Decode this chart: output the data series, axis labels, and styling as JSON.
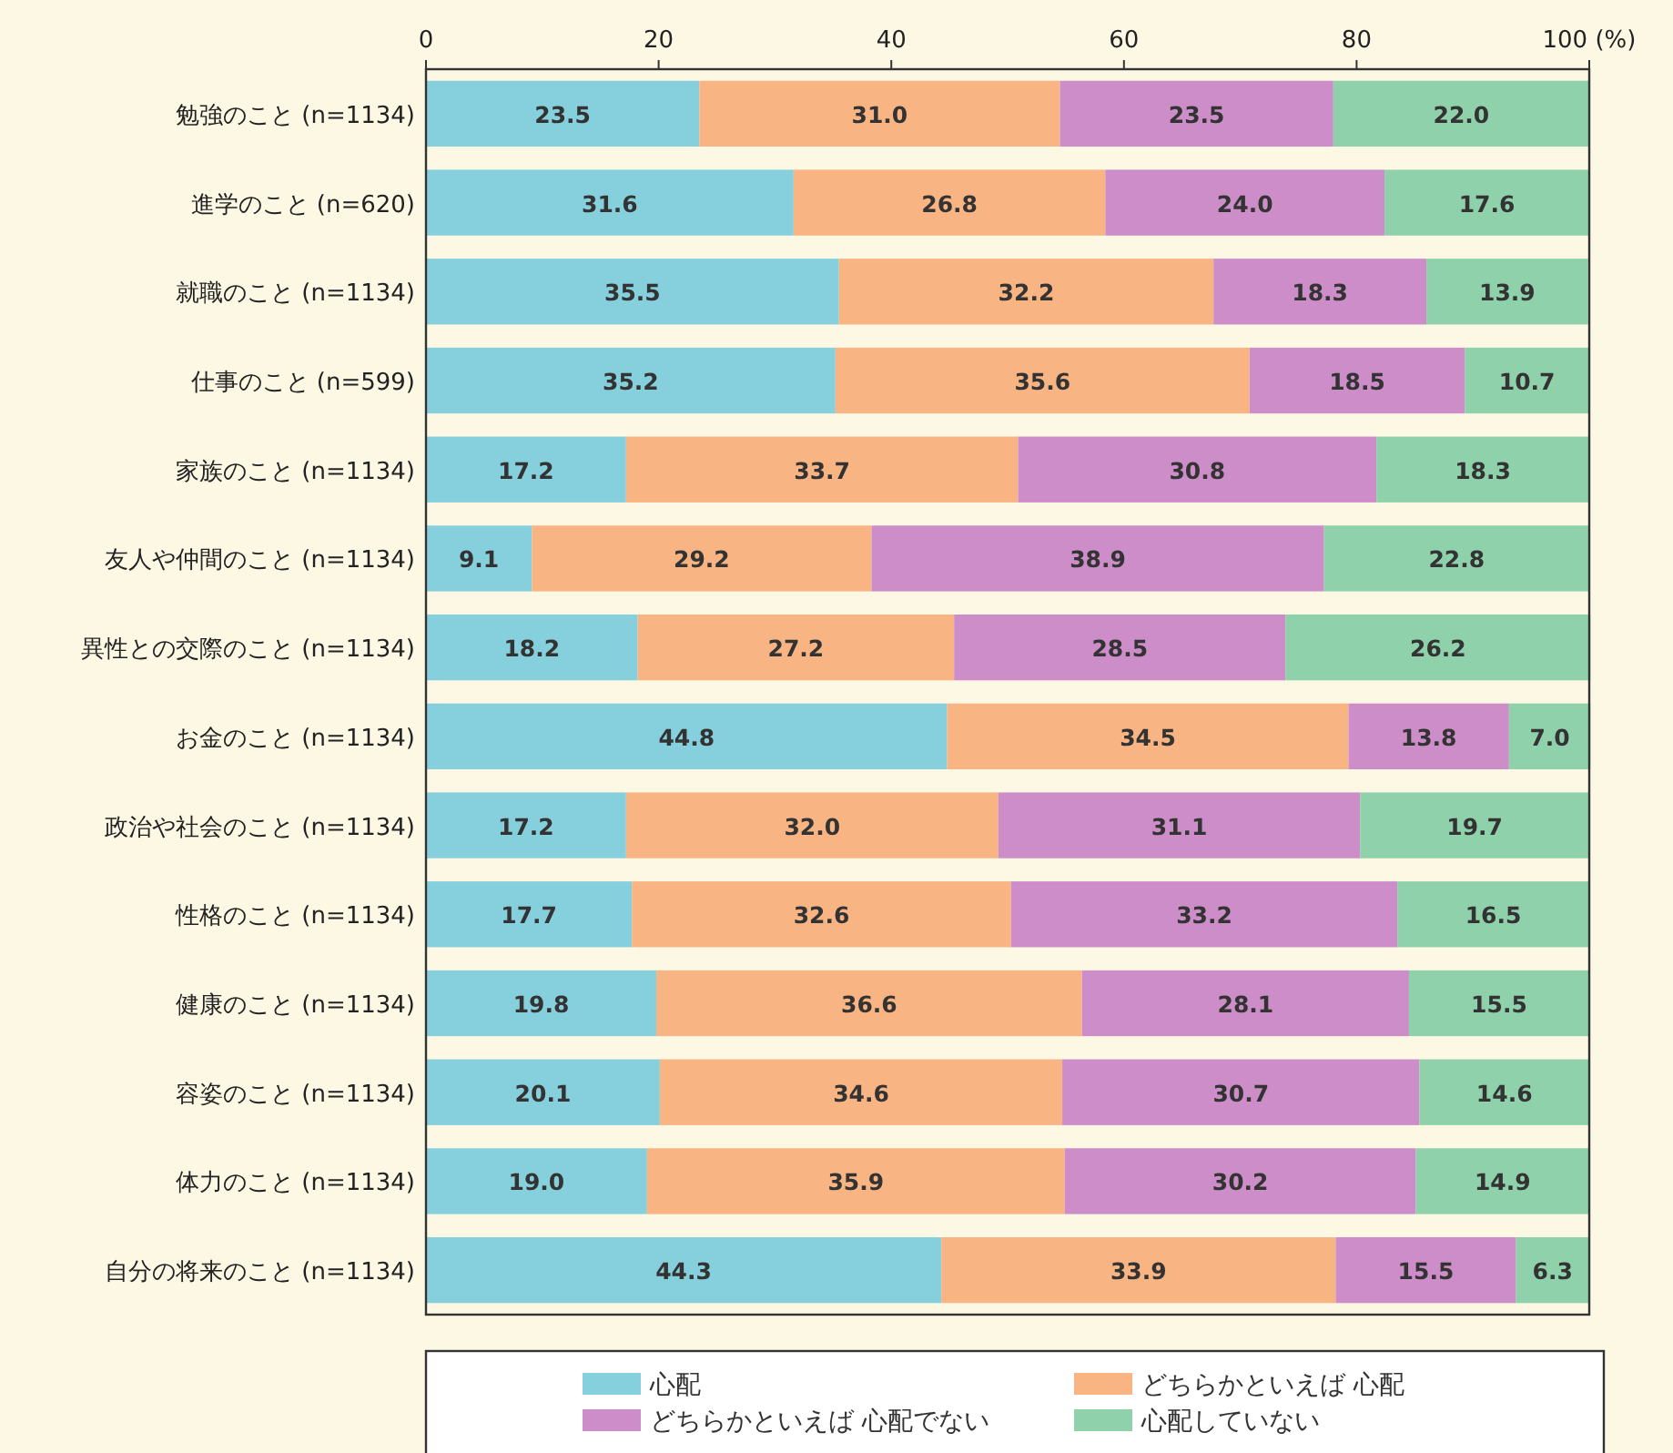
{
  "chart_data": {
    "type": "bar",
    "orientation": "horizontal",
    "stacked": true,
    "legend": "bottom",
    "categories": [
      "勉強のこと (n=1134)",
      "進学のこと (n=620)",
      "就職のこと (n=1134)",
      "仕事のこと (n=599)",
      "家族のこと (n=1134)",
      "友人や仲間のこと (n=1134)",
      "異性との交際のこと (n=1134)",
      "お金のこと (n=1134)",
      "政治や社会のこと (n=1134)",
      "性格のこと (n=1134)",
      "健康のこと (n=1134)",
      "容姿のこと (n=1134)",
      "体力のこと (n=1134)",
      "自分の将来のこと (n=1134)"
    ],
    "xlim": [
      0,
      100
    ],
    "xticks": [
      0,
      20,
      40,
      60,
      80,
      {
        "value": 100,
        "label": "100 (%)"
      }
    ],
    "series": [
      {
        "name": "心配",
        "color": "#85d0dc",
        "values": [
          23.5,
          31.6,
          35.5,
          35.2,
          17.2,
          9.1,
          18.2,
          44.8,
          17.2,
          17.7,
          19.8,
          20.1,
          19.0,
          44.3
        ],
        "value_labels": [
          "23.5",
          "31.6",
          "35.5",
          "35.2",
          "17.2",
          "9.1",
          "18.2",
          "44.8",
          "17.2",
          "17.7",
          "19.8",
          "20.1",
          "19.0",
          "44.3"
        ]
      },
      {
        "name": "どちらかといえば 心配",
        "color": "#f9b483",
        "values": [
          31.0,
          26.8,
          32.2,
          35.6,
          33.7,
          29.2,
          27.2,
          34.5,
          32.0,
          32.6,
          36.6,
          34.6,
          35.9,
          33.9
        ],
        "value_labels": [
          "31.0",
          "26.8",
          "32.2",
          "35.6",
          "33.7",
          "29.2",
          "27.2",
          "34.5",
          "32.0",
          "32.6",
          "36.6",
          "34.6",
          "35.9",
          "33.9"
        ]
      },
      {
        "name": "どちらかといえば 心配でない",
        "color": "#cc8dc8",
        "values": [
          23.5,
          24.0,
          18.3,
          18.5,
          30.8,
          38.9,
          28.5,
          13.8,
          31.1,
          33.2,
          28.1,
          30.7,
          30.2,
          15.5
        ],
        "value_labels": [
          "23.5",
          "24.0",
          "18.3",
          "18.5",
          "30.8",
          "38.9",
          "28.5",
          "13.8",
          "31.1",
          "33.2",
          "28.1",
          "30.7",
          "30.2",
          "15.5"
        ]
      },
      {
        "name": "心配していない",
        "color": "#8fd1ab",
        "values": [
          22.0,
          17.6,
          13.9,
          10.7,
          18.3,
          22.8,
          26.2,
          7.0,
          19.7,
          16.5,
          15.5,
          14.6,
          14.9,
          6.3
        ],
        "value_labels": [
          "22.0",
          "17.6",
          "13.9",
          "10.7",
          "18.3",
          "22.8",
          "26.2",
          "7.0",
          "19.7",
          "16.5",
          "15.5",
          "14.6",
          "14.9",
          "6.3"
        ]
      }
    ]
  }
}
